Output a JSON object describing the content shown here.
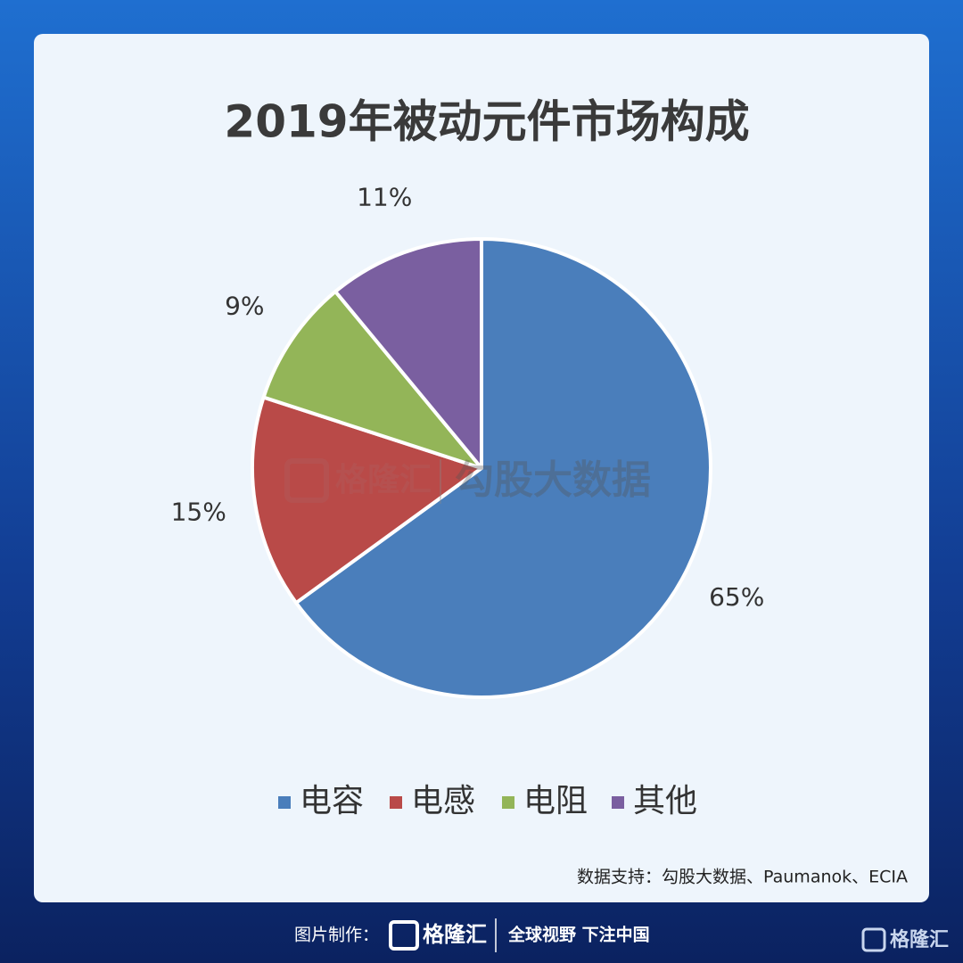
{
  "chart_data": {
    "type": "pie",
    "title": "2019年被动元件市场构成",
    "categories": [
      "电容",
      "电感",
      "电阻",
      "其他"
    ],
    "values": [
      65,
      15,
      9,
      11
    ],
    "value_labels": [
      "65%",
      "15%",
      "9%",
      "11%"
    ],
    "colors": [
      "#4a7ebb",
      "#b94a48",
      "#93b558",
      "#7a5fa0"
    ],
    "legend": "bottom",
    "source": "数据支持：勾股大数据、Paumanok、ECIA"
  },
  "watermark": {
    "brand": "格隆汇",
    "text": "勾股大数据"
  },
  "footer": {
    "credit": "图片制作：",
    "brand": "格隆汇",
    "slogan": "全球视野 下注中国"
  }
}
